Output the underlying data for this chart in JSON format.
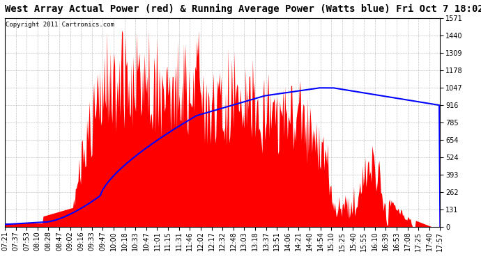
{
  "title": "West Array Actual Power (red) & Running Average Power (Watts blue) Fri Oct 7 18:02",
  "copyright": "Copyright 2011 Cartronics.com",
  "ymax": 1570.7,
  "yticks": [
    0.0,
    130.9,
    261.8,
    392.7,
    523.6,
    654.4,
    785.3,
    916.2,
    1047.1,
    1178.0,
    1308.9,
    1439.8,
    1570.7
  ],
  "x_labels": [
    "07:21",
    "07:37",
    "07:53",
    "08:10",
    "08:28",
    "08:47",
    "09:02",
    "09:16",
    "09:33",
    "09:47",
    "10:00",
    "10:18",
    "10:33",
    "10:47",
    "11:01",
    "11:15",
    "11:31",
    "11:46",
    "12:02",
    "12:17",
    "12:32",
    "12:48",
    "13:03",
    "13:18",
    "13:37",
    "13:51",
    "14:06",
    "14:21",
    "14:40",
    "14:54",
    "15:10",
    "15:25",
    "15:40",
    "15:55",
    "16:10",
    "16:39",
    "16:53",
    "17:08",
    "17:25",
    "17:40",
    "17:57"
  ],
  "background_color": "#ffffff",
  "red_color": "#ff0000",
  "blue_color": "#0000ff",
  "title_fontsize": 10,
  "copyright_fontsize": 6.5,
  "tick_fontsize": 7,
  "grid_color": "#aaaaaa"
}
